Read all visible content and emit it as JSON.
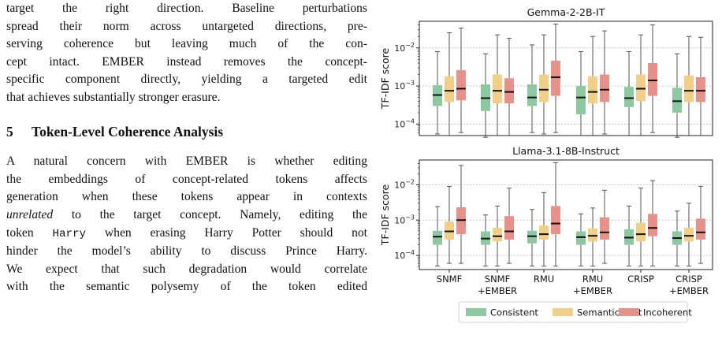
{
  "text": {
    "p1_lines": [
      "target the right direction. Baseline perturbations",
      "spread their norm across untargeted directions, pre-",
      "serving coherence but leaving much of the con-",
      "cept intact. EMBER instead removes the concept-",
      "specific component directly, yielding a targeted edit",
      "that achieves substantially stronger erasure."
    ],
    "section_number": "5",
    "section_title": "Token-Level Coherence Analysis",
    "p2": {
      "l1": "A natural concern with EMBER is whether editing",
      "l2": "the embeddings of concept-related tokens affects",
      "l3": "generation when these tokens appear in contexts",
      "l4_em": "unrelated",
      "l4_rest": " to the target concept. Namely, editing the",
      "l5_a": "token ",
      "l5_code": "Harry",
      "l5_b": " when erasing Harry Potter should not",
      "l6": "hinder the model’s ability to discuss Prince Harry.",
      "l7": "We expect that such degradation would correlate",
      "l8": "with the semantic polysemy of the token edited"
    }
  },
  "chart_data": {
    "type": "box",
    "ylabel": "TF-IDF score",
    "y_scale": "log",
    "categories": [
      "SNMF",
      "SNMF\n+EMBER",
      "RMU",
      "RMU\n+EMBER",
      "CRISP",
      "CRISP\n+EMBER"
    ],
    "category_lines": [
      [
        "SNMF"
      ],
      [
        "SNMF",
        "+EMBER"
      ],
      [
        "RMU"
      ],
      [
        "RMU",
        "+EMBER"
      ],
      [
        "CRISP"
      ],
      [
        "CRISP",
        "+EMBER"
      ]
    ],
    "series": [
      {
        "name": "Consistent",
        "color": "#8cc9a0"
      },
      {
        "name": "Semantic shift",
        "color": "#f2cf86"
      },
      {
        "name": "Incoherent",
        "color": "#e8908a"
      }
    ],
    "legend_position": "bottom-center",
    "grid": "horizontal dotted at major ticks",
    "panels": [
      {
        "title": "Gemma-2-2B-IT",
        "ylim": [
          5e-05,
          0.05
        ],
        "yticks": [
          {
            "v": 0.0001,
            "base": "10",
            "exp": "−4"
          },
          {
            "v": 0.001,
            "base": "10",
            "exp": "−3"
          },
          {
            "v": 0.01,
            "base": "10",
            "exp": "−2"
          }
        ],
        "boxes": [
          [
            [
              5.5e-05,
              0.0003,
              0.00058,
              0.00105,
              0.008
            ],
            [
              5e-05,
              0.00038,
              0.00075,
              0.0018,
              0.025
            ],
            [
              6e-05,
              0.00042,
              0.00085,
              0.0026,
              0.033
            ]
          ],
          [
            [
              4.5e-05,
              0.00022,
              0.00048,
              0.0011,
              0.007
            ],
            [
              5e-05,
              0.00035,
              0.00075,
              0.002,
              0.022
            ],
            [
              5e-05,
              0.00035,
              0.0007,
              0.0016,
              0.018
            ]
          ],
          [
            [
              6e-05,
              0.0003,
              0.0005,
              0.0011,
              0.012
            ],
            [
              5.5e-05,
              0.00038,
              0.0008,
              0.002,
              0.022
            ],
            [
              6e-05,
              0.00055,
              0.0017,
              0.0046,
              0.042
            ]
          ],
          [
            [
              5e-05,
              0.00018,
              0.0005,
              0.001,
              0.008
            ],
            [
              5e-05,
              0.00035,
              0.0007,
              0.0018,
              0.02
            ],
            [
              5.5e-05,
              0.00038,
              0.0008,
              0.002,
              0.028
            ]
          ],
          [
            [
              5e-05,
              0.00028,
              0.00048,
              0.00095,
              0.008
            ],
            [
              5e-05,
              0.0004,
              0.00085,
              0.002,
              0.022
            ],
            [
              6e-05,
              0.00055,
              0.0014,
              0.004,
              0.04
            ]
          ],
          [
            [
              4.5e-05,
              0.0002,
              0.0004,
              0.0009,
              0.007
            ],
            [
              5e-05,
              0.00038,
              0.00075,
              0.0019,
              0.02
            ],
            [
              5e-05,
              0.00038,
              0.00075,
              0.0017,
              0.019
            ]
          ]
        ]
      },
      {
        "title": "Llama-3.1-8B-Instruct",
        "ylim": [
          4e-05,
          0.05
        ],
        "yticks": [
          {
            "v": 0.0001,
            "base": "10",
            "exp": "−4"
          },
          {
            "v": 0.001,
            "base": "10",
            "exp": "−3"
          },
          {
            "v": 0.01,
            "base": "10",
            "exp": "−2"
          }
        ],
        "boxes": [
          [
            [
              5e-05,
              0.0002,
              0.00034,
              0.0005,
              0.0024
            ],
            [
              6e-05,
              0.00028,
              0.00048,
              0.0009,
              0.009
            ],
            [
              6e-05,
              0.0004,
              0.001,
              0.0023,
              0.035
            ]
          ],
          [
            [
              5e-05,
              0.0002,
              0.0003,
              0.00048,
              0.0014
            ],
            [
              5e-05,
              0.00025,
              0.00035,
              0.0006,
              0.0025
            ],
            [
              6e-05,
              0.00028,
              0.00048,
              0.0013,
              0.008
            ]
          ],
          [
            [
              5e-05,
              0.00022,
              0.00035,
              0.0005,
              0.002
            ],
            [
              5e-05,
              0.00028,
              0.0004,
              0.0007,
              0.006
            ],
            [
              5e-05,
              0.0004,
              0.0008,
              0.0025,
              0.042
            ]
          ],
          [
            [
              5e-05,
              0.0002,
              0.00033,
              0.00048,
              0.0015
            ],
            [
              5e-05,
              0.00025,
              0.00036,
              0.00058,
              0.0022
            ],
            [
              6e-05,
              0.00028,
              0.00045,
              0.0012,
              0.007
            ]
          ],
          [
            [
              5e-05,
              0.0002,
              0.00032,
              0.00055,
              0.0025
            ],
            [
              5e-05,
              0.00025,
              0.0004,
              0.00085,
              0.008
            ],
            [
              5e-05,
              0.00035,
              0.0006,
              0.0015,
              0.013
            ]
          ],
          [
            [
              5e-05,
              0.0002,
              0.00031,
              0.00048,
              0.0018
            ],
            [
              5e-05,
              0.00025,
              0.00036,
              0.0006,
              0.003
            ],
            [
              6e-05,
              0.00028,
              0.00045,
              0.0011,
              0.009
            ]
          ]
        ]
      }
    ]
  }
}
